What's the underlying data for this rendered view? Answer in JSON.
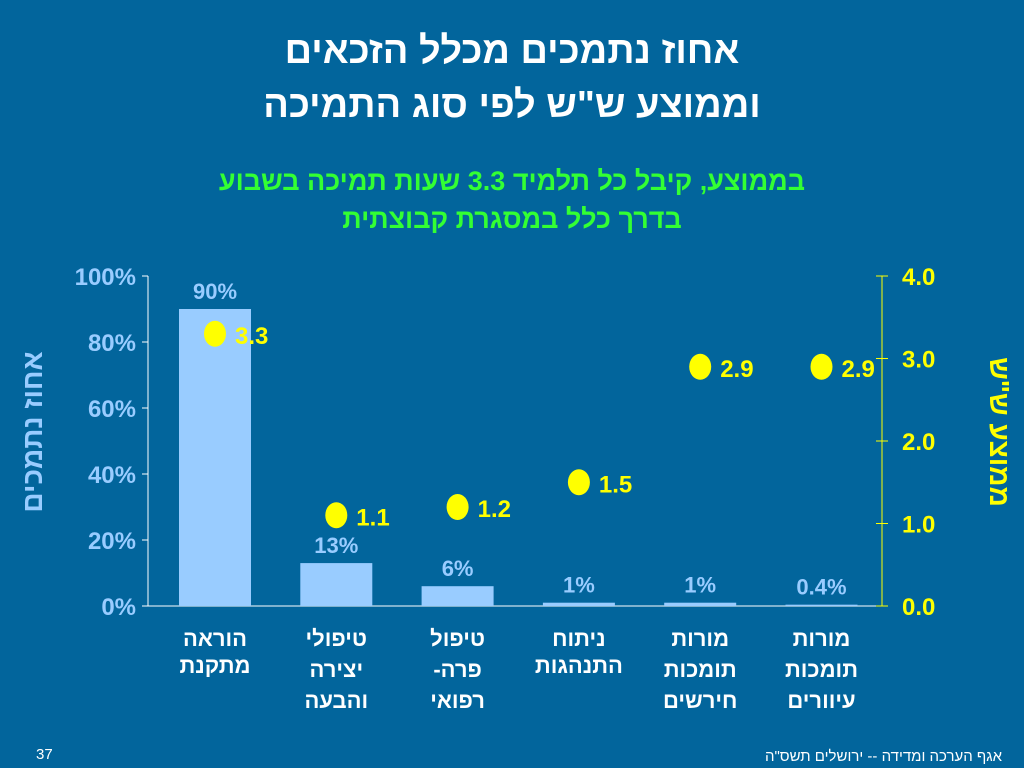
{
  "title_lines": [
    "אחוז נתמכים מכלל הזכאים",
    "וממוצע ש\"ש לפי סוג התמיכה"
  ],
  "subtitle_lines": [
    "בממוצע, קיבל כל תלמיד 3.3 שעות תמיכה בשבוע",
    "בדרך כלל במסגרת קבוצתית"
  ],
  "footer": {
    "page_number": "37",
    "credit": "אגף הערכה ומדידה -- ירושלים תשס\"ה"
  },
  "colors": {
    "background": "#02659c",
    "bars": "#99ccff",
    "dots": "#ffff00",
    "subtitle": "#33ff33"
  },
  "chart_data": {
    "type": "bar",
    "categories": [
      [
        "הוראה",
        "מתקנת"
      ],
      [
        "טיפולי",
        "יצירה",
        "והבעה"
      ],
      [
        "טיפול",
        "פרה-",
        "רפואי"
      ],
      [
        "ניתוח",
        "התנהגות"
      ],
      [
        "מורות",
        "תומכות",
        "חירשים"
      ],
      [
        "מורות",
        "תומכות",
        "עיוורים"
      ]
    ],
    "series": [
      {
        "name": "אחוז נתמכים",
        "type": "bar",
        "axis": "left",
        "values": [
          90,
          13,
          6,
          1,
          1,
          0.4
        ],
        "labels": [
          "90%",
          "13%",
          "6%",
          "1%",
          "1%",
          "0.4%"
        ]
      },
      {
        "name": "ממוצע ש\"ש",
        "type": "scatter",
        "axis": "right",
        "values": [
          3.3,
          1.1,
          1.2,
          1.5,
          2.9,
          2.9
        ],
        "labels": [
          "3.3",
          "1.1",
          "1.2",
          "1.5",
          "2.9",
          "2.9"
        ]
      }
    ],
    "ylabel": "אחוז נתמכים",
    "y2label": "ממוצע ש\"ש",
    "ylim": [
      0,
      100
    ],
    "y2lim": [
      0,
      4
    ],
    "yticks": [
      "0%",
      "20%",
      "40%",
      "60%",
      "80%",
      "100%"
    ],
    "y2ticks": [
      "0.0",
      "1.0",
      "2.0",
      "3.0",
      "4.0"
    ]
  }
}
